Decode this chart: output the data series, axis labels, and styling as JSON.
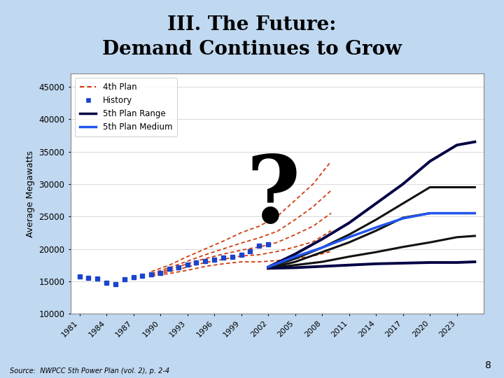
{
  "title_line1": "III. The Future:",
  "title_line2": "Demand Continues to Grow",
  "bg_color": "#c0d8f0",
  "plot_bg": "#ffffff",
  "ylabel": "Average Megawatts",
  "yticks": [
    10000,
    15000,
    20000,
    25000,
    30000,
    35000,
    40000,
    45000
  ],
  "ylim": [
    10000,
    47000
  ],
  "xlim": [
    1980,
    2026
  ],
  "xtick_years": [
    1981,
    1984,
    1987,
    1990,
    1993,
    1996,
    1999,
    2002,
    2005,
    2008,
    2011,
    2014,
    2017,
    2020,
    2023
  ],
  "history_years": [
    1981,
    1982,
    1983,
    1984,
    1985,
    1986,
    1987,
    1988,
    1989,
    1990,
    1991,
    1992,
    1993,
    1994,
    1995,
    1996,
    1997,
    1998,
    1999,
    2000,
    2001,
    2002
  ],
  "history_values": [
    15700,
    15500,
    15400,
    14800,
    14500,
    15300,
    15600,
    15800,
    16100,
    16300,
    16900,
    17100,
    17600,
    17900,
    18100,
    18300,
    18600,
    18800,
    19100,
    19600,
    20500,
    20700
  ],
  "fourth_plan_years": [
    1989,
    1991,
    1993,
    1995,
    1997,
    1999,
    2001,
    2003,
    2005,
    2007,
    2009
  ],
  "fourth_plan_series": [
    [
      16500,
      17500,
      18800,
      20000,
      21200,
      22500,
      23500,
      25000,
      27500,
      30000,
      33500
    ],
    [
      16200,
      17100,
      18100,
      19100,
      20000,
      20900,
      21700,
      22700,
      24500,
      26500,
      29000
    ],
    [
      16000,
      16800,
      17700,
      18500,
      19200,
      19800,
      20300,
      21000,
      22200,
      23500,
      25500
    ],
    [
      15900,
      16500,
      17200,
      17900,
      18400,
      18900,
      19100,
      19600,
      20300,
      21100,
      22800
    ],
    [
      15800,
      16200,
      16700,
      17300,
      17700,
      18000,
      18000,
      18200,
      18500,
      18900,
      19600
    ]
  ],
  "fifth_plan_years": [
    2002,
    2005,
    2008,
    2011,
    2014,
    2017,
    2020,
    2023,
    2025
  ],
  "fifth_high": [
    17200,
    19200,
    21500,
    24000,
    27000,
    30000,
    33500,
    36000,
    36500
  ],
  "fifth_mid_high": [
    17100,
    18500,
    20200,
    22200,
    24500,
    27000,
    29500,
    29500,
    29500
  ],
  "fifth_med_low": [
    17000,
    18000,
    19500,
    21000,
    22800,
    24800,
    25500,
    25500,
    25500
  ],
  "fifth_low": [
    17000,
    17500,
    18000,
    18800,
    19500,
    20300,
    21000,
    21800,
    22000
  ],
  "fifth_flat": [
    17000,
    17100,
    17300,
    17500,
    17700,
    17800,
    17900,
    17900,
    18000
  ],
  "fifth_medium_years": [
    2002,
    2005,
    2008,
    2011,
    2014,
    2017,
    2020,
    2023,
    2025
  ],
  "fifth_medium": [
    17200,
    18800,
    20200,
    21800,
    23300,
    24700,
    25500,
    25500,
    25500
  ],
  "source_text": "Source:  NWPCC 5th Power Plan (vol. 2), p. 2-4",
  "slide_number": "8",
  "history_color": "#1a44cc",
  "fourth_plan_color": "#cc3300",
  "fifth_range_dark": "#000044",
  "fifth_range_black": "#111111",
  "fifth_medium_color": "#2255ee",
  "qmark_year": 2002.5,
  "qmark_val": 35000,
  "qmark_size": 95
}
